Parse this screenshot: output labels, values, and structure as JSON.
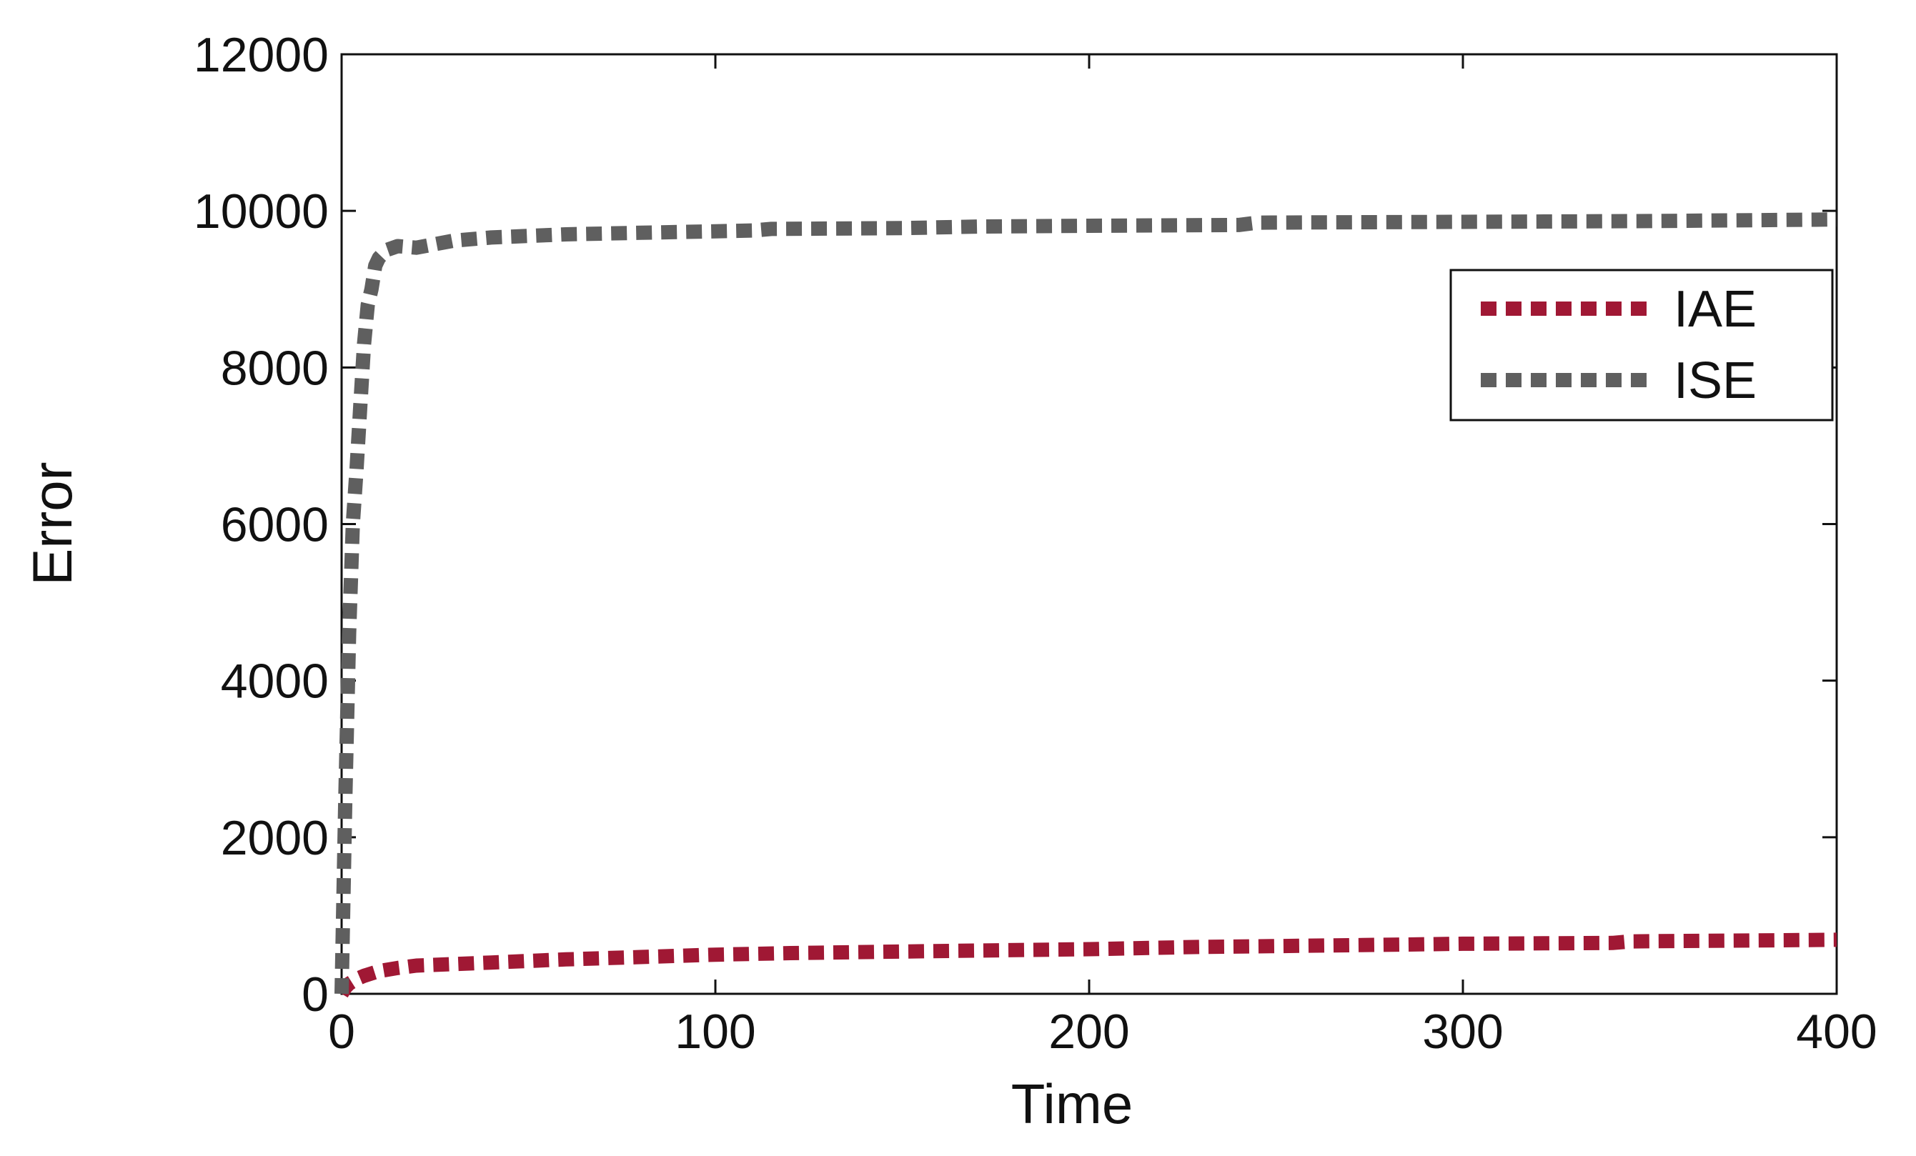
{
  "chart_data": {
    "type": "line",
    "title": "",
    "xlabel": "Time",
    "ylabel": "Error",
    "xlim": [
      0,
      400
    ],
    "ylim": [
      0,
      12000
    ],
    "xticks": [
      0,
      100,
      200,
      300,
      400
    ],
    "yticks": [
      0,
      2000,
      4000,
      6000,
      8000,
      10000,
      12000
    ],
    "xtick_labels": [
      "0",
      "100",
      "200",
      "300",
      "400"
    ],
    "ytick_labels": [
      "0",
      "2000",
      "4000",
      "6000",
      "8000",
      "10000",
      "12000"
    ],
    "grid": false,
    "legend": {
      "position": "top-right"
    },
    "series": [
      {
        "name": "IAE",
        "color": "#a01834",
        "style": "dotted",
        "x": [
          0,
          1,
          2,
          4,
          6,
          8,
          10,
          15,
          20,
          30,
          40,
          50,
          60,
          80,
          100,
          120,
          150,
          200,
          230,
          250,
          285,
          300,
          340,
          345,
          400
        ],
        "y": [
          0,
          80,
          130,
          190,
          230,
          260,
          290,
          330,
          360,
          380,
          400,
          420,
          440,
          470,
          500,
          520,
          540,
          570,
          600,
          610,
          630,
          640,
          650,
          670,
          690
        ]
      },
      {
        "name": "ISE",
        "color": "#5f5f5f",
        "style": "dotted",
        "x": [
          0,
          1,
          2,
          3,
          4,
          5,
          6,
          7,
          8,
          9,
          10,
          12,
          15,
          20,
          30,
          40,
          60,
          80,
          100,
          110,
          115,
          150,
          170,
          200,
          240,
          245,
          300,
          350,
          400
        ],
        "y": [
          0,
          2500,
          4600,
          6000,
          6700,
          7500,
          8300,
          8800,
          9000,
          9300,
          9400,
          9500,
          9550,
          9530,
          9620,
          9660,
          9700,
          9720,
          9740,
          9750,
          9770,
          9780,
          9800,
          9810,
          9820,
          9850,
          9860,
          9870,
          9890
        ]
      }
    ]
  }
}
